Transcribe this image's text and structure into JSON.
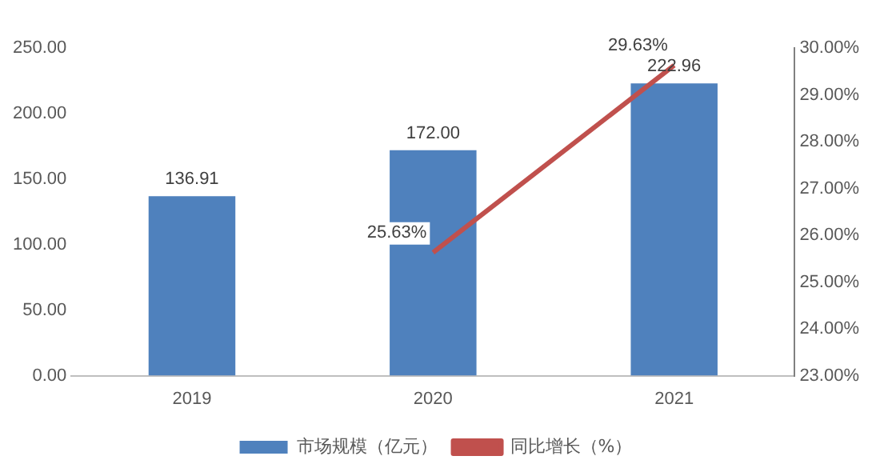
{
  "chart_data": {
    "type": "bar",
    "categories": [
      "2019",
      "2020",
      "2021"
    ],
    "series": [
      {
        "name": "市场规模（亿元）",
        "color": "#4f81bd",
        "values": [
          136.91,
          172.0,
          222.96
        ],
        "value_labels": [
          "136.91",
          "172.00",
          "222.96"
        ]
      },
      {
        "name": "同比增长（%）",
        "type": "line",
        "axis": "y2",
        "color": "#c0504d",
        "values": [
          null,
          25.63,
          29.63
        ],
        "value_labels": [
          null,
          "25.63%",
          "29.63%"
        ]
      }
    ],
    "ylim": [
      0,
      250
    ],
    "yticks": [
      {
        "value": 0,
        "label": "0.00"
      },
      {
        "value": 50,
        "label": "50.00"
      },
      {
        "value": 100,
        "label": "100.00"
      },
      {
        "value": 150,
        "label": "150.00"
      },
      {
        "value": 200,
        "label": "200.00"
      },
      {
        "value": 250,
        "label": "250.00"
      }
    ],
    "y2lim": [
      23,
      30
    ],
    "y2ticks": [
      {
        "value": 23,
        "label": "23.00%"
      },
      {
        "value": 24,
        "label": "24.00%"
      },
      {
        "value": 25,
        "label": "25.00%"
      },
      {
        "value": 26,
        "label": "26.00%"
      },
      {
        "value": 27,
        "label": "27.00%"
      },
      {
        "value": 28,
        "label": "28.00%"
      },
      {
        "value": 29,
        "label": "29.00%"
      },
      {
        "value": 30,
        "label": "30.00%"
      }
    ],
    "grid": false,
    "legend": "bottom",
    "marker": "none"
  }
}
